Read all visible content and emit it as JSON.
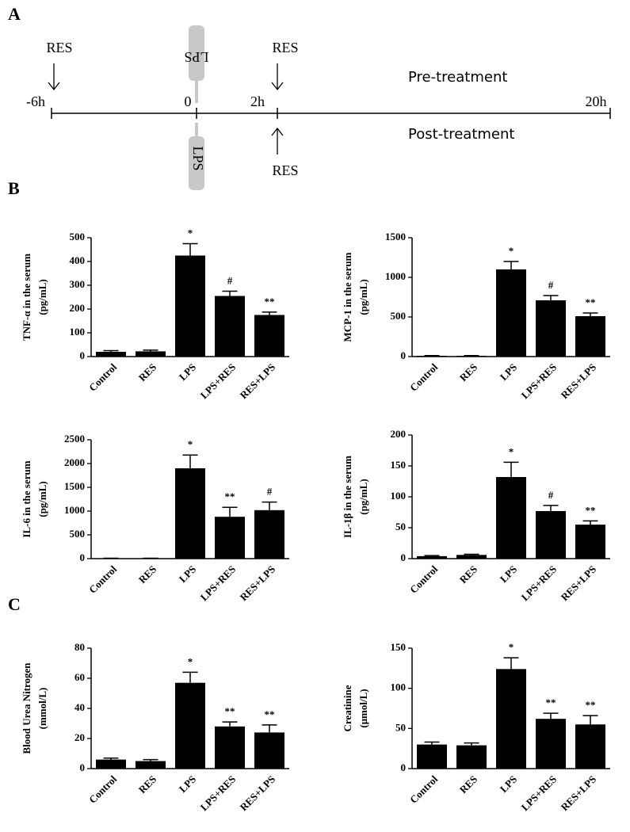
{
  "panel_labels": [
    "A",
    "B",
    "C"
  ],
  "timeline": {
    "ticks": [
      "-6h",
      "0",
      "2h",
      "20h"
    ],
    "res_labels": [
      "RES",
      "RES",
      "RES"
    ],
    "lps_labels": [
      "LPS",
      "LPS"
    ],
    "pre": "Pre-treatment",
    "post": "Post-treatment"
  },
  "chart_data": [
    {
      "type": "bar",
      "ylabel": [
        "TNF-α  in the serum",
        "(pg/mL)"
      ],
      "categories": [
        "Control",
        "RES",
        "LPS",
        "LPS+RES",
        "RES+LPS"
      ],
      "values": [
        20,
        22,
        425,
        255,
        175
      ],
      "errors": [
        5,
        5,
        50,
        20,
        12
      ],
      "annotations": [
        null,
        null,
        "*",
        "#",
        "**"
      ],
      "color": "#000000",
      "ylim": [
        0,
        500
      ],
      "yticks": [
        0,
        100,
        200,
        300,
        400,
        500
      ]
    },
    {
      "type": "bar",
      "ylabel": [
        "MCP-1 in the serum",
        "(pg/mL)"
      ],
      "categories": [
        "Control",
        "RES",
        "LPS",
        "LPS+RES",
        "RES+LPS"
      ],
      "values": [
        10,
        10,
        1100,
        710,
        510
      ],
      "errors": [
        3,
        3,
        100,
        60,
        40
      ],
      "annotations": [
        null,
        null,
        "*",
        "#",
        "**"
      ],
      "color": "#000000",
      "ylim": [
        0,
        1500
      ],
      "yticks": [
        0,
        500,
        1000,
        1500
      ]
    },
    {
      "type": "bar",
      "ylabel": [
        "IL-6 in the serum",
        "(pg/mL)"
      ],
      "categories": [
        "Control",
        "RES",
        "LPS",
        "LPS+RES",
        "RES+LPS"
      ],
      "values": [
        5,
        5,
        1900,
        880,
        1020
      ],
      "errors": [
        3,
        3,
        280,
        200,
        170
      ],
      "annotations": [
        null,
        null,
        "*",
        "**",
        "#"
      ],
      "color": "#000000",
      "ylim": [
        0,
        2500
      ],
      "yticks": [
        0,
        500,
        1000,
        1500,
        2000,
        2500
      ]
    },
    {
      "type": "bar",
      "ylabel": [
        "IL-1β  in the serum",
        "(pg/mL)"
      ],
      "categories": [
        "Control",
        "RES",
        "LPS",
        "LPS+RES",
        "RES+LPS"
      ],
      "values": [
        4,
        6,
        132,
        77,
        55
      ],
      "errors": [
        1,
        1,
        24,
        9,
        6
      ],
      "annotations": [
        null,
        null,
        "*",
        "#",
        "**"
      ],
      "color": "#000000",
      "ylim": [
        0,
        200
      ],
      "yticks": [
        0,
        50,
        100,
        150,
        200
      ]
    },
    {
      "type": "bar",
      "ylabel": [
        "Blood Urea Nitrogen",
        "(mmol/L)"
      ],
      "categories": [
        "Control",
        "RES",
        "LPS",
        "LPS+RES",
        "RES+LPS"
      ],
      "values": [
        6,
        5,
        57,
        28,
        24
      ],
      "errors": [
        1,
        1,
        7,
        3,
        5
      ],
      "annotations": [
        null,
        null,
        "*",
        "**",
        "**"
      ],
      "color": "#000000",
      "ylim": [
        0,
        80
      ],
      "yticks": [
        0,
        20,
        40,
        60,
        80
      ]
    },
    {
      "type": "bar",
      "ylabel": [
        "Creatinine",
        "(μmol/L)"
      ],
      "categories": [
        "Control",
        "RES",
        "LPS",
        "LPS+RES",
        "RES+LPS"
      ],
      "values": [
        30,
        29,
        124,
        62,
        55
      ],
      "errors": [
        3,
        3,
        14,
        7,
        11
      ],
      "annotations": [
        null,
        null,
        "*",
        "**",
        "**"
      ],
      "color": "#000000",
      "ylim": [
        0,
        150
      ],
      "yticks": [
        0,
        50,
        100,
        150
      ]
    }
  ]
}
